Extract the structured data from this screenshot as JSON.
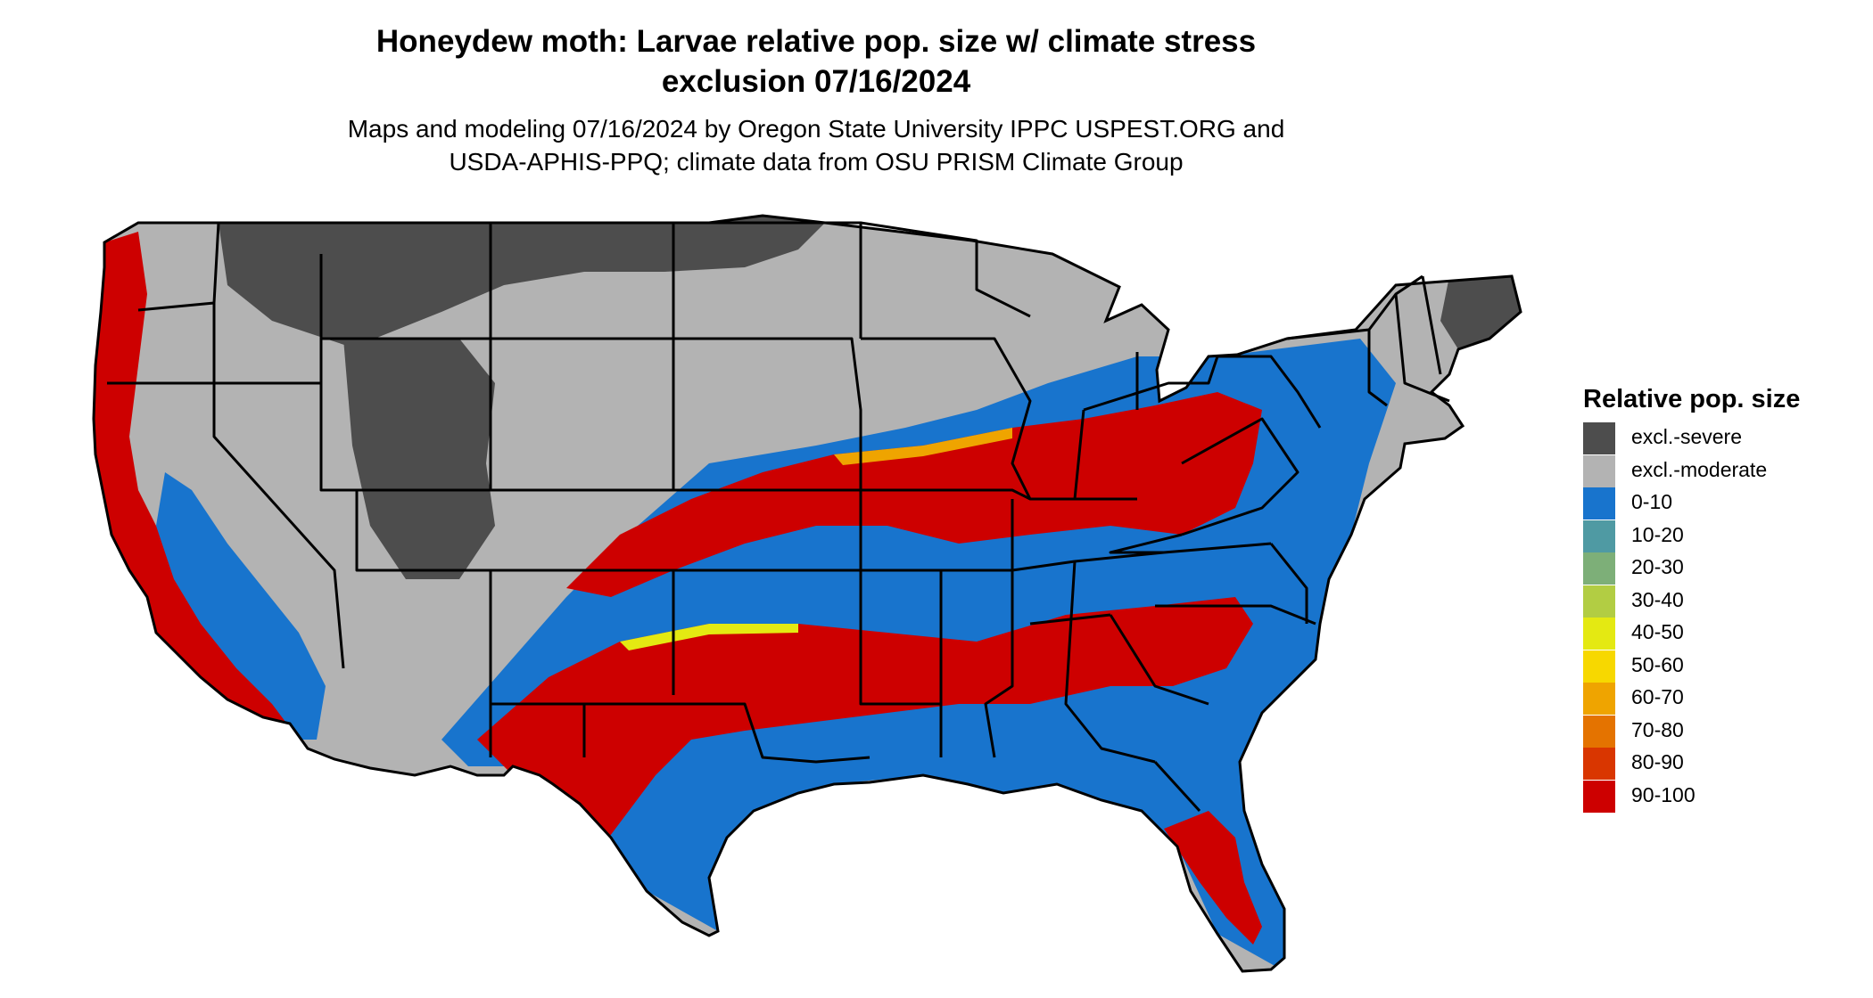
{
  "title_line1": "Honeydew moth: Larvae relative pop. size w/ climate stress",
  "title_line2": "exclusion 07/16/2024",
  "subtitle_line1": "Maps and modeling 07/16/2024 by Oregon State University IPPC USPEST.ORG and",
  "subtitle_line2": "USDA-APHIS-PPQ; climate data from OSU PRISM Climate Group",
  "legend": {
    "title": "Relative pop. size",
    "items": [
      {
        "label": "excl.-severe",
        "color": "#4d4d4d"
      },
      {
        "label": "excl.-moderate",
        "color": "#b3b3b3"
      },
      {
        "label": "0-10",
        "color": "#1874cd"
      },
      {
        "label": "10-20",
        "color": "#4f9aa3"
      },
      {
        "label": "20-30",
        "color": "#7daf78"
      },
      {
        "label": "30-40",
        "color": "#b2cd43"
      },
      {
        "label": "40-50",
        "color": "#e4e912"
      },
      {
        "label": "50-60",
        "color": "#f7d800"
      },
      {
        "label": "60-70",
        "color": "#efa400"
      },
      {
        "label": "70-80",
        "color": "#e47300"
      },
      {
        "label": "80-90",
        "color": "#d93600"
      },
      {
        "label": "90-100",
        "color": "#cd0000"
      }
    ]
  }
}
